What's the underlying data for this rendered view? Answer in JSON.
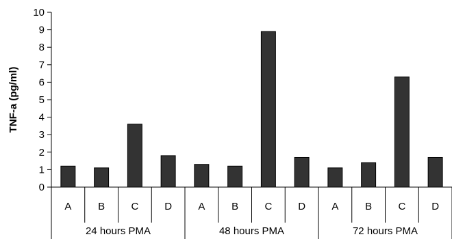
{
  "chart_data": {
    "type": "bar",
    "ylabel": "TNF-a (pg/ml)",
    "xlabel": "",
    "ylim": [
      0,
      10
    ],
    "yticks": [
      0,
      1,
      2,
      3,
      4,
      5,
      6,
      7,
      8,
      9,
      10
    ],
    "groups": [
      {
        "label": "24 hours PMA",
        "categories": [
          "A",
          "B",
          "C",
          "D"
        ],
        "values": [
          1.2,
          1.1,
          3.6,
          1.8
        ]
      },
      {
        "label": "48 hours PMA",
        "categories": [
          "A",
          "B",
          "C",
          "D"
        ],
        "values": [
          1.3,
          1.2,
          8.9,
          1.7
        ]
      },
      {
        "label": "72 hours PMA",
        "categories": [
          "A",
          "B",
          "C",
          "D"
        ],
        "values": [
          1.1,
          1.4,
          6.3,
          1.7
        ]
      }
    ],
    "bar_color": "#333333",
    "grid": false,
    "legend": "none"
  }
}
